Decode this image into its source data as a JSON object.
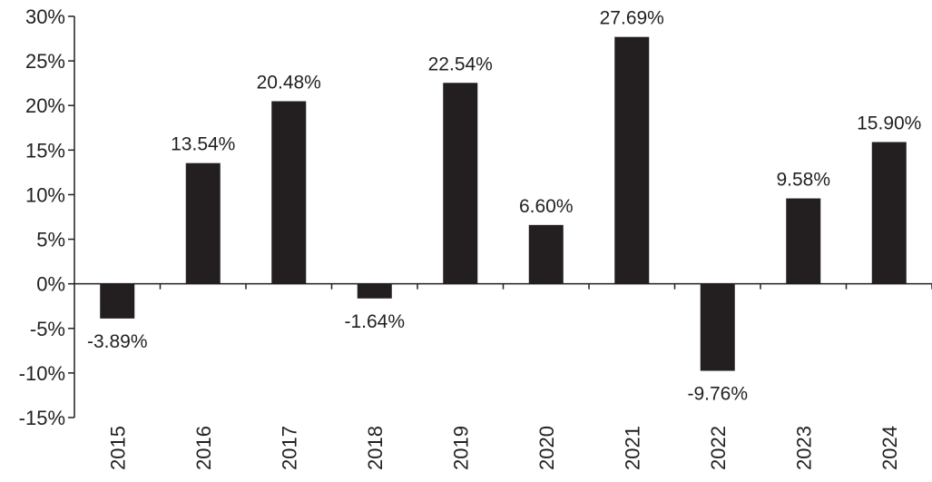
{
  "chart_data": {
    "type": "bar",
    "categories": [
      "2015",
      "2016",
      "2017",
      "2018",
      "2019",
      "2020",
      "2021",
      "2022",
      "2023",
      "2024"
    ],
    "values": [
      -3.89,
      13.54,
      20.48,
      -1.64,
      22.54,
      6.6,
      27.69,
      -9.76,
      9.58,
      15.9
    ],
    "data_labels": [
      "-3.89%",
      "13.54%",
      "20.48%",
      "-1.64%",
      "22.54%",
      "6.60%",
      "27.69%",
      "-9.76%",
      "9.58%",
      "15.90%"
    ],
    "y_ticks": [
      30,
      25,
      20,
      15,
      10,
      5,
      0,
      -5,
      -10,
      -15
    ],
    "y_tick_labels": [
      "30%",
      "25%",
      "20%",
      "15%",
      "10%",
      "5%",
      "0%",
      "-5%",
      "-10%",
      "-15%"
    ],
    "ylim": [
      -15,
      30
    ],
    "bar_color": "#231f20",
    "grid": false,
    "legend": "none"
  }
}
